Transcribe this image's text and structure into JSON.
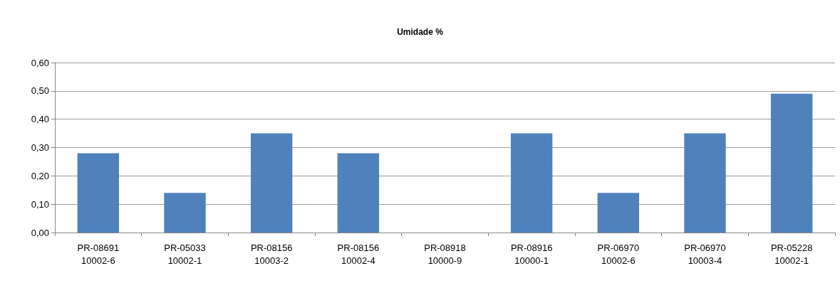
{
  "chart_data": {
    "type": "bar",
    "title": "Umidade %",
    "categories": [
      "PR-08691\n10002-6",
      "PR-05033\n10002-1",
      "PR-08156\n10003-2",
      "PR-08156\n10002-4",
      "PR-08918\n10000-9",
      "PR-08916\n10000-1",
      "PR-06970\n10002-6",
      "PR-06970\n10003-4",
      "PR-05228\n10002-1"
    ],
    "values": [
      0.28,
      0.14,
      0.35,
      0.28,
      0,
      0.35,
      0.14,
      0.35,
      0.49
    ],
    "color": "#4f81bd",
    "ylim": [
      0,
      0.6
    ],
    "yticks": [
      {
        "value": 0,
        "label": "0,00"
      },
      {
        "value": 0.1,
        "label": "0,10"
      },
      {
        "value": 0.2,
        "label": "0,20"
      },
      {
        "value": 0.3,
        "label": "0,30"
      },
      {
        "value": 0.4,
        "label": "0,40"
      },
      {
        "value": 0.5,
        "label": "0,50"
      },
      {
        "value": 0.6,
        "label": "0,60"
      }
    ],
    "grid": "y"
  }
}
